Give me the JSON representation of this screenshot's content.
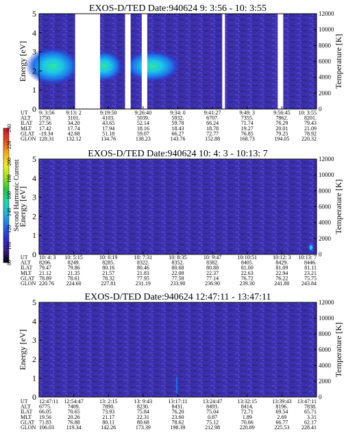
{
  "colors": {
    "background": "#ffffff",
    "spectrogram_base": "#3a2fa8",
    "colorbar": [
      "#000000",
      "#3a1a8a",
      "#2a2fd0",
      "#1f6fe8",
      "#19b6e0",
      "#1ed6a8",
      "#20c83a",
      "#9ae61e",
      "#f0ee22",
      "#f6a51c",
      "#e8461e",
      "#c8102e"
    ]
  },
  "colorbar": {
    "label": "Second Harmonic Current",
    "ticks": [
      "80",
      "100",
      "120",
      "140",
      "160",
      "180",
      "200",
      "220",
      "240"
    ]
  },
  "chart_data": [
    {
      "type": "heatmap",
      "title": "EXOS-D/TED   Date:940624   9: 3:56 - 10: 3:55",
      "ylabel": "Energy [eV]",
      "y2label": "Temperature [K]",
      "ylim": [
        0,
        5
      ],
      "y2lim": [
        0,
        12000
      ],
      "yticks": [
        "0",
        "1",
        "2",
        "3",
        "4",
        "5"
      ],
      "y2ticks": [
        "0",
        "2000",
        "4000",
        "6000",
        "8000",
        "10000",
        "12000"
      ],
      "row_labels": [
        "UT",
        "ALT",
        "ILAT",
        "MLT",
        "GLAT",
        "GLON"
      ],
      "columns": [
        [
          "9: 3:56",
          "1750.",
          "27.56",
          "17.42",
          "-19.34",
          "128.31"
        ],
        [
          "9:13: 2",
          "3101.",
          "34.20",
          "17.74",
          "42.68",
          "132.12"
        ],
        [
          "9:19:50",
          "4103.",
          "43.65",
          "17.94",
          "51.18",
          "134.76"
        ],
        [
          "9:26:40",
          "5039.",
          "52.14",
          "18.16",
          "59.07",
          "138.23"
        ],
        [
          "9:34: 0",
          "5932.",
          "59.78",
          "18.43",
          "66.27",
          "143.76"
        ],
        [
          "9:41:27",
          "6707.",
          "66.24",
          "18.78",
          "72.77",
          "152.88"
        ],
        [
          "9:49: 3",
          "7355.",
          "71.74",
          "19.27",
          "76.85",
          "168.73"
        ],
        [
          "9:56:45",
          "7862.",
          "76.29",
          "20.01",
          "79.25",
          "194.05"
        ],
        [
          "10: 3:55",
          "8201.",
          "79.43",
          "21.09",
          "78.92",
          "220.32"
        ]
      ],
      "features": {
        "data_gaps_x": [
          [
            0.13,
            0.22
          ],
          [
            0.31,
            0.33
          ],
          [
            0.37,
            0.39
          ],
          [
            0.66,
            0.67
          ],
          [
            0.86,
            0.88
          ]
        ],
        "intense_band_energy_ev": [
          1.5,
          3.0
        ]
      }
    },
    {
      "type": "heatmap",
      "title": "EXOS-D/TED   Date:940624   10: 4: 3 - 10:13: 7",
      "ylabel": "Energy [eV]",
      "y2label": "Temperature [K]",
      "ylim": [
        0,
        5
      ],
      "y2lim": [
        0,
        12000
      ],
      "yticks": [
        "0",
        "1",
        "2",
        "3",
        "4",
        "5"
      ],
      "y2ticks": [
        "0",
        "2000",
        "4000",
        "6000",
        "8000",
        "10000",
        "12000"
      ],
      "row_labels": [
        "UT",
        "ALT",
        "ILAT",
        "MLT",
        "GLAT",
        "GLON"
      ],
      "columns": [
        [
          "10: 4: 3",
          "8206.",
          "79.47",
          "21.12",
          "78.89",
          "220.76"
        ],
        [
          "10: 5:15",
          "8249.",
          "79.86",
          "21.35",
          "78.61",
          "224.60"
        ],
        [
          "10: 6:19",
          "8285.",
          "80.16",
          "21.57",
          "78.32",
          "227.81"
        ],
        [
          "10: 7:31",
          "8322.",
          "80.46",
          "21.83",
          "77.95",
          "231.19"
        ],
        [
          "10: 8:35",
          "8352.",
          "80.68",
          "22.08",
          "77.58",
          "233.90"
        ],
        [
          "10: 9:47",
          "8382.",
          "80.88",
          "22.37",
          "77.14",
          "236.90"
        ],
        [
          "10:10:51",
          "8405.",
          "81.00",
          "22.63",
          "76.72",
          "239.30"
        ],
        [
          "10:12: 3",
          "8429.",
          "81.09",
          "22.94",
          "76.22",
          "241.80"
        ],
        [
          "10:13: 7",
          "8446.",
          "81.11",
          "23.21",
          "75.75",
          "243.84"
        ]
      ]
    },
    {
      "type": "heatmap",
      "title": "EXOS-D/TED   Date:940624   12:47:11 - 13:47:11",
      "ylabel": "Energy [eV]",
      "y2label": "Temperature [K]",
      "ylim": [
        0,
        5
      ],
      "y2lim": [
        0,
        12000
      ],
      "yticks": [
        "0",
        "1",
        "2",
        "3",
        "4",
        "5"
      ],
      "y2ticks": [
        "0",
        "2000",
        "4000",
        "6000",
        "8000",
        "10000",
        "12000"
      ],
      "row_labels": [
        "UT",
        "ALT",
        "ILAT",
        "MLT",
        "GLAT",
        "GLON"
      ],
      "columns": [
        [
          "12:47:11",
          "6775.",
          "66.05",
          "19.56",
          "71.83",
          "106.03"
        ],
        [
          "12:54:47",
          "7409.",
          "70.65",
          "20.26",
          "76.88",
          "119.34"
        ],
        [
          "13: 2:15",
          "7890.",
          "73.93",
          "21.17",
          "80.11",
          "142.26"
        ],
        [
          "13: 9:43",
          "8230.",
          "75.84",
          "22.31",
          "80.68",
          "173.39"
        ],
        [
          "13:17:11",
          "8431.",
          "76.20",
          "23.60",
          "78.62",
          "198.39"
        ],
        [
          "13:24:47",
          "8493.",
          "75.04",
          "0.87",
          "75.12",
          "212.98"
        ],
        [
          "13:32:15",
          "8414.",
          "72.71",
          "1.89",
          "70.66",
          "220.89"
        ],
        [
          "13:39:43",
          "8196.",
          "69.54",
          "2.69",
          "66.77",
          "225.53"
        ],
        [
          "13:47:11",
          "7838.",
          "65.71",
          "3.31",
          "62.17",
          "228.41"
        ]
      ]
    }
  ]
}
